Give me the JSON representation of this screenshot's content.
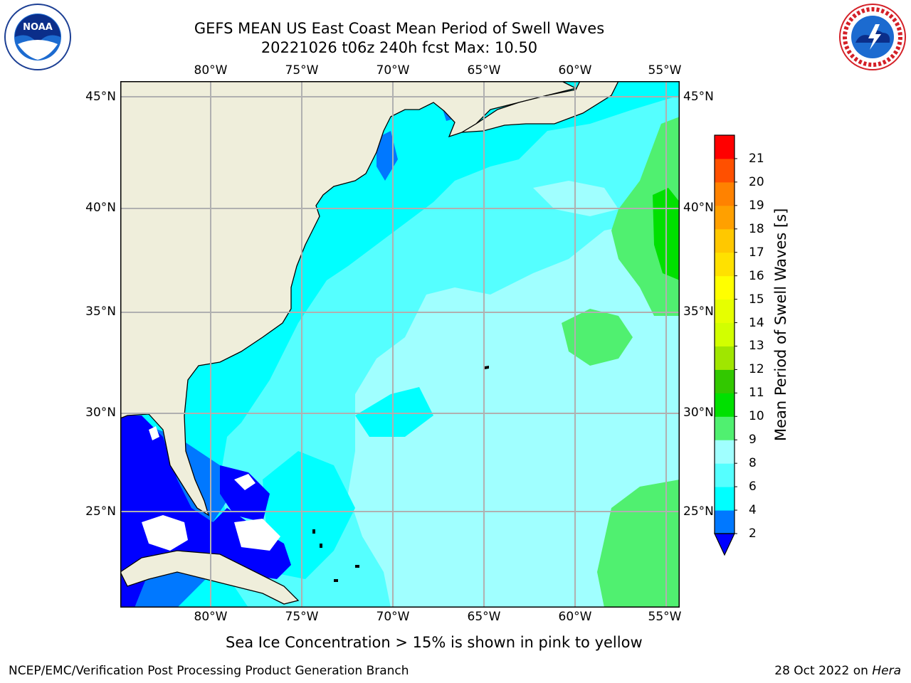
{
  "header": {
    "title_line1": "GEFS MEAN US East Coast Mean Period of Swell Waves",
    "title_line2": "20221026 t06z 240h fcst   Max: 10.50"
  },
  "logos": {
    "left": "noara-logo",
    "right": "national-weather-service-logo"
  },
  "map": {
    "lon_labels": [
      "80°W",
      "75°W",
      "70°W",
      "65°W",
      "60°W",
      "55°W"
    ],
    "lat_labels": [
      "45°N",
      "40°N",
      "35°N",
      "30°N",
      "25°N"
    ],
    "ocean_colors": {
      "c2_4": "#0078ff",
      "c4_6": "#00ffff",
      "c6_8": "#55ffff",
      "c8_9": "#a0ffff",
      "c9_10": "#50f070",
      "c10_11": "#00e000",
      "below": "#0000ff"
    },
    "land_color": "#efeedb"
  },
  "colorbar": {
    "label": "Mean Period of Swell Waves [s]",
    "ticks": [
      "2",
      "4",
      "6",
      "8",
      "9",
      "10",
      "11",
      "12",
      "13",
      "14",
      "15",
      "16",
      "17",
      "18",
      "19",
      "20",
      "21"
    ],
    "colors": [
      "#0078ff",
      "#00ffff",
      "#55ffff",
      "#a0ffff",
      "#50f070",
      "#00e000",
      "#32c800",
      "#a0e600",
      "#d2ff00",
      "#e6ff00",
      "#ffff00",
      "#ffe100",
      "#ffc800",
      "#ffa000",
      "#ff8200",
      "#ff5000",
      "#ff0000"
    ]
  },
  "note": "Sea Ice Concentration > 15% is shown in pink to yellow",
  "footer": {
    "left": "NCEP/EMC/Verification Post Processing Product Generation Branch",
    "right_date": "28 Oct 2022 on ",
    "right_machine": "Hera"
  }
}
